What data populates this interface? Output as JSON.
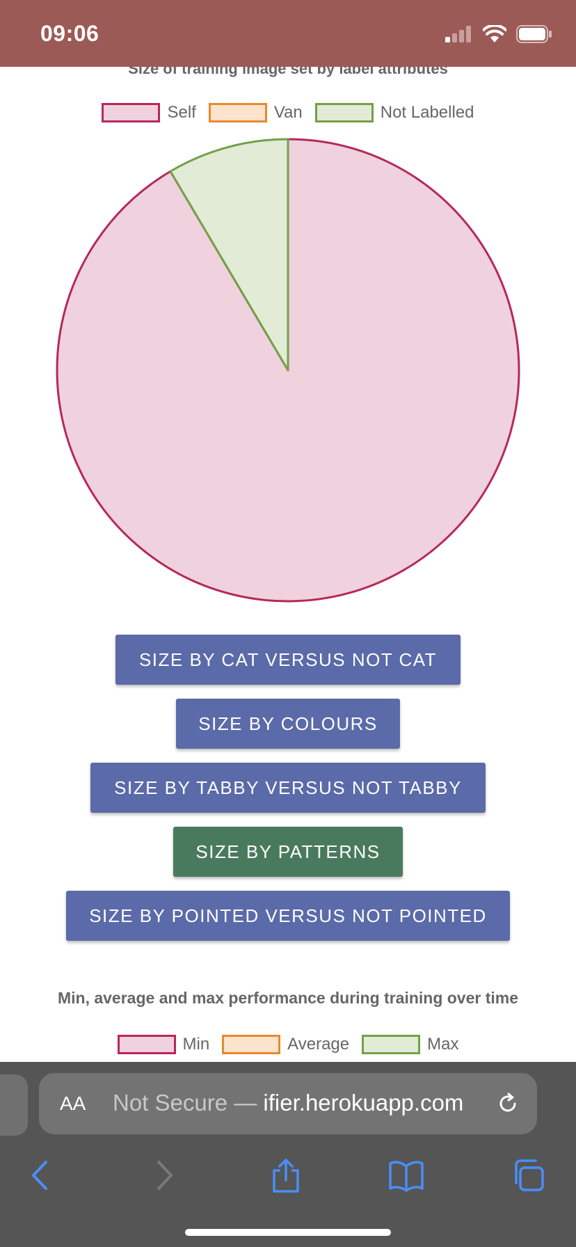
{
  "status": {
    "time": "09:06"
  },
  "chart1": {
    "title": "Size of training image set by label attributes",
    "legend": [
      {
        "label": "Self",
        "fill": "#efd2de",
        "stroke": "#b7285a"
      },
      {
        "label": "Van",
        "fill": "#fce3cc",
        "stroke": "#e8892e"
      },
      {
        "label": "Not Labelled",
        "fill": "#e2ebd6",
        "stroke": "#72a047"
      }
    ]
  },
  "chart_data": [
    {
      "type": "pie",
      "title": "Size of training image set by label attributes",
      "categories": [
        "Self",
        "Van",
        "Not Labelled"
      ],
      "values": [
        91.5,
        0,
        8.5
      ],
      "colors": {
        "Self": "#b7285a",
        "Van": "#e8892e",
        "Not Labelled": "#72a047"
      },
      "legend_position": "top"
    },
    {
      "type": "line",
      "title": "Min, average and max performance during training over time",
      "series": [
        {
          "name": "Min"
        },
        {
          "name": "Average"
        },
        {
          "name": "Max"
        }
      ],
      "legend_position": "top"
    }
  ],
  "buttons": [
    {
      "label": "SIZE BY CAT VERSUS NOT CAT",
      "color": "#5b6aa8"
    },
    {
      "label": "SIZE BY COLOURS",
      "color": "#5b6aa8"
    },
    {
      "label": "SIZE BY TABBY VERSUS NOT TABBY",
      "color": "#5b6aa8"
    },
    {
      "label": "SIZE BY PATTERNS",
      "color": "#4a7a5e"
    },
    {
      "label": "SIZE BY POINTED VERSUS NOT POINTED",
      "color": "#5b6aa8"
    }
  ],
  "chart2": {
    "title": "Min, average and max performance during training over time",
    "legend": [
      {
        "label": "Min",
        "fill": "#efd2de",
        "stroke": "#b7285a"
      },
      {
        "label": "Average",
        "fill": "#fce3cc",
        "stroke": "#e8892e"
      },
      {
        "label": "Max",
        "fill": "#e2ebd6",
        "stroke": "#72a047"
      }
    ]
  },
  "browser": {
    "text_size_label": "AA",
    "url_prefix": "Not Secure — ",
    "url_host": "ifier.herokuapp.com",
    "accent": "#3b82f6"
  }
}
